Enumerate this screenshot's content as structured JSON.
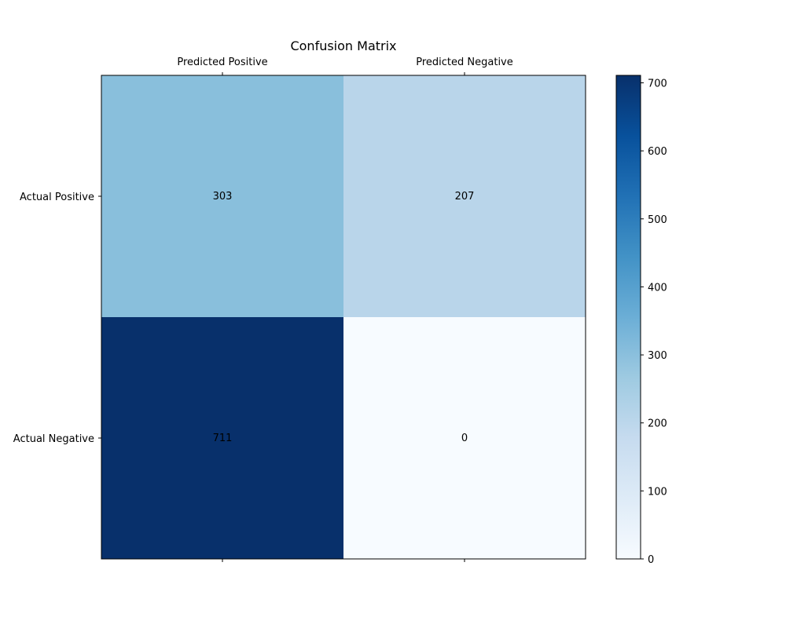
{
  "chart_data": {
    "type": "heatmap",
    "title": "Confusion Matrix",
    "columns": [
      "Predicted Positive",
      "Predicted Negative"
    ],
    "rows": [
      "Actual Positive",
      "Actual Negative"
    ],
    "values": [
      [
        303,
        207
      ],
      [
        711,
        0
      ]
    ],
    "colorbar": {
      "range": [
        0,
        711
      ],
      "ticks": [
        0,
        100,
        200,
        300,
        400,
        500,
        600,
        700
      ],
      "colormap": "Blues"
    },
    "colors": {
      "low": "#f7fbff",
      "high": "#08306b"
    },
    "xaxis_position": "top",
    "grid": false
  }
}
